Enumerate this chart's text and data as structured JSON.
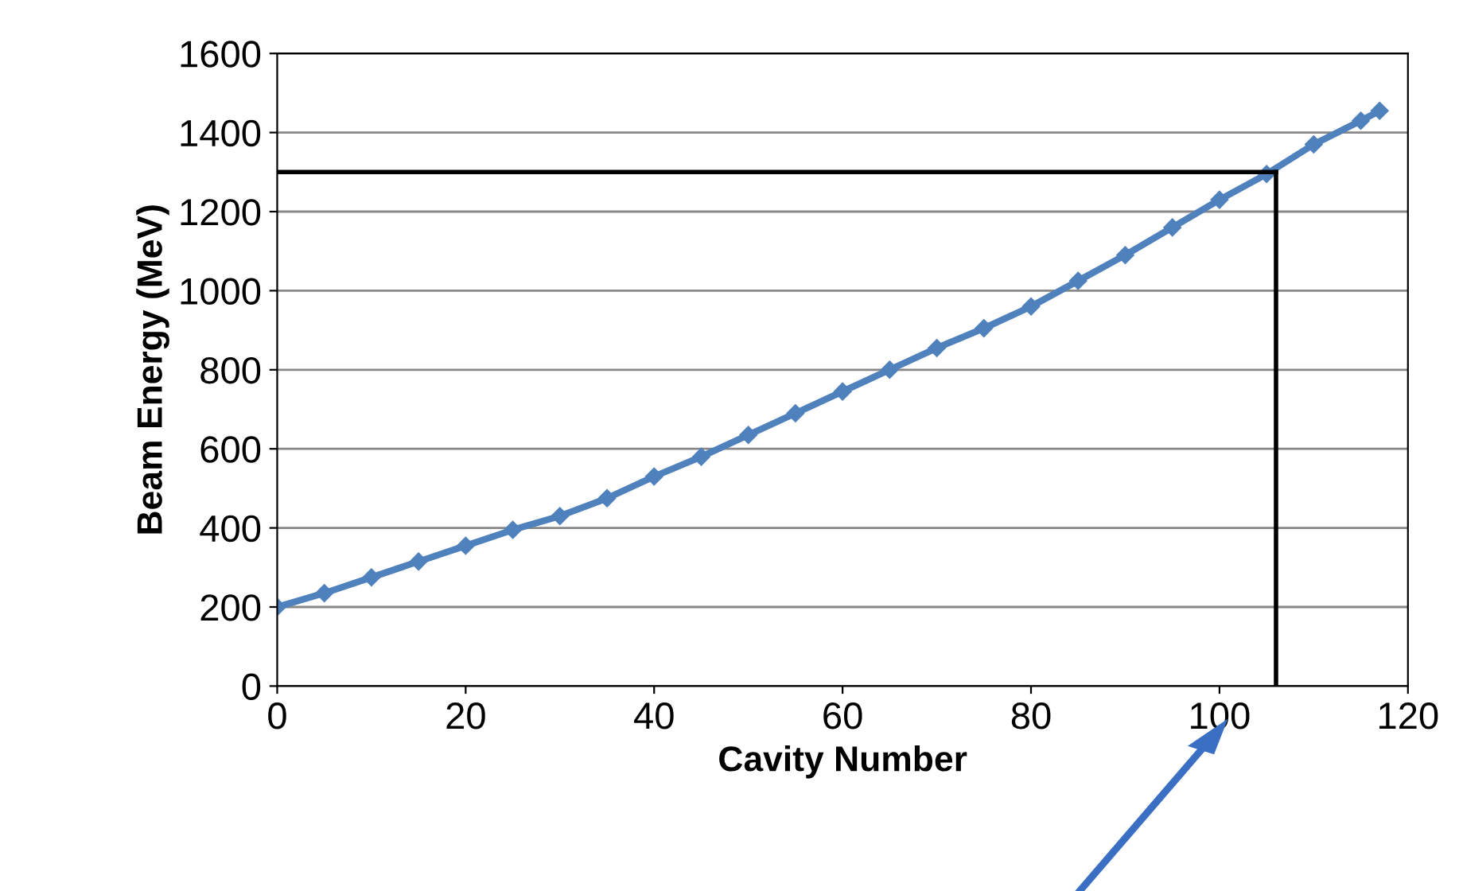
{
  "chart_data": {
    "type": "line",
    "xlabel": "Cavity Number",
    "ylabel": "Beam Energy (MeV)",
    "x": [
      0,
      5,
      10,
      15,
      20,
      25,
      30,
      35,
      40,
      45,
      50,
      55,
      60,
      65,
      70,
      75,
      80,
      85,
      90,
      95,
      100,
      105,
      110,
      115,
      117
    ],
    "series": [
      {
        "color": "#4f81bd",
        "values": [
          200,
          235,
          275,
          315,
          355,
          395,
          430,
          475,
          530,
          580,
          635,
          690,
          745,
          800,
          855,
          905,
          960,
          1025,
          1090,
          1160,
          1230,
          1295,
          1370,
          1430,
          1455
        ]
      }
    ],
    "marker": "diamond",
    "line_style": "solid",
    "xlim": [
      0,
      120
    ],
    "xticks": [
      0,
      20,
      40,
      60,
      80,
      100,
      120
    ],
    "ylim": [
      0,
      1600
    ],
    "yticks": [
      0,
      200,
      400,
      600,
      800,
      1000,
      1200,
      1400,
      1600
    ],
    "grid": "y",
    "legend": false,
    "ref_lines": [
      {
        "axis": "y",
        "value": 1300,
        "color": "#000000"
      },
      {
        "axis": "x",
        "value": 106,
        "color": "#000000"
      }
    ]
  }
}
